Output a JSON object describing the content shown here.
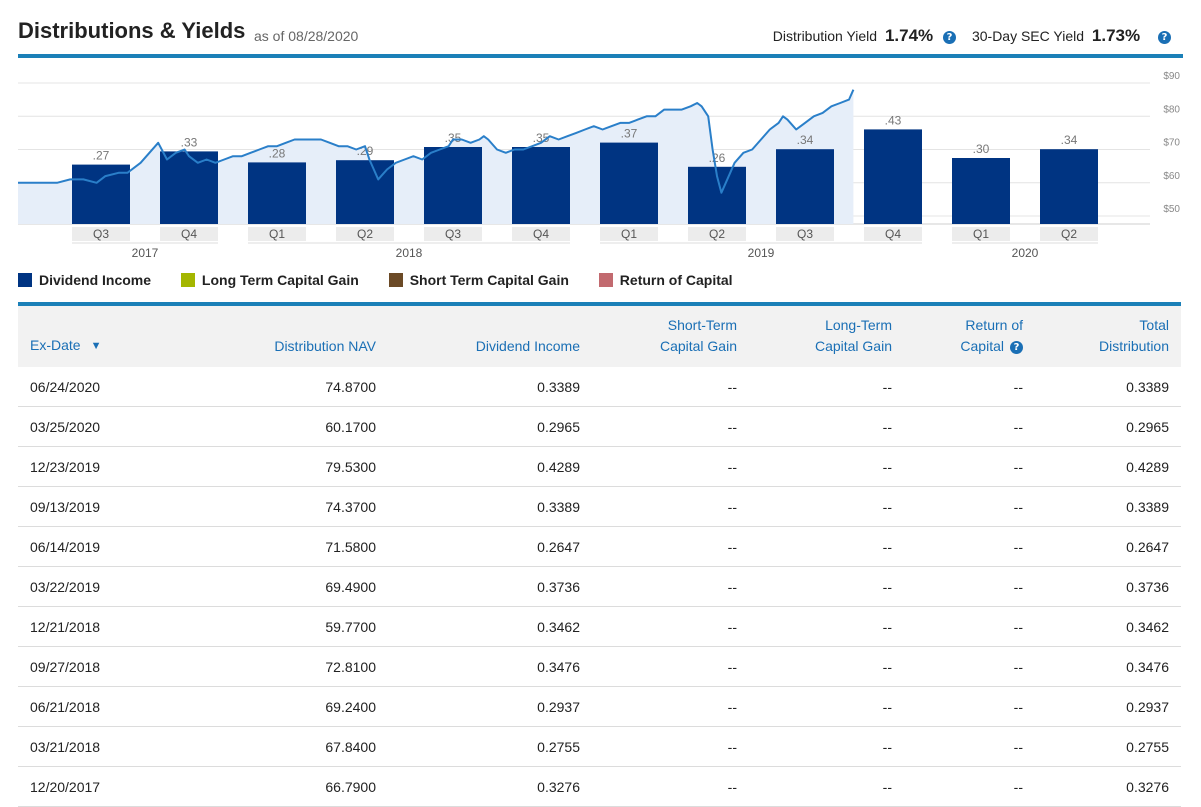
{
  "header": {
    "title": "Distributions & Yields",
    "as_of": "as of 08/28/2020",
    "distribution_yield_label": "Distribution Yield",
    "distribution_yield_value": "1.74%",
    "sec_yield_label": "30-Day SEC Yield",
    "sec_yield_value": "1.73%",
    "help_glyph": "?"
  },
  "colors": {
    "accent": "#1b80b8",
    "dividend_income": "#003482",
    "long_term_capital_gain": "#a4b600",
    "short_term_capital_gain": "#6b4a26",
    "return_of_capital": "#c26a6f",
    "nav_line": "#2a7fc9",
    "nav_area": "#e6eef9"
  },
  "chart_data": {
    "type": "bar",
    "quarters": [
      "Q3",
      "Q4",
      "Q1",
      "Q2",
      "Q3",
      "Q4",
      "Q1",
      "Q2",
      "Q3",
      "Q4",
      "Q1",
      "Q2"
    ],
    "years": [
      {
        "label": "2017",
        "first": 0,
        "last": 1
      },
      {
        "label": "2018",
        "first": 2,
        "last": 5
      },
      {
        "label": "2019",
        "first": 6,
        "last": 9
      },
      {
        "label": "2020",
        "first": 10,
        "last": 11
      }
    ],
    "bar_values": [
      0.27,
      0.33,
      0.28,
      0.29,
      0.35,
      0.35,
      0.37,
      0.26,
      0.34,
      0.43,
      0.3,
      0.34
    ],
    "bar_labels": [
      ".27",
      ".33",
      ".28",
      ".29",
      ".35",
      ".35",
      ".37",
      ".26",
      ".34",
      ".43",
      ".30",
      ".34"
    ],
    "y_right_ticks": [
      "$90",
      "$80",
      "$70",
      "$60",
      "$50"
    ],
    "y_right_range": [
      50,
      90
    ],
    "nav_line": [
      [
        0.0,
        60
      ],
      [
        0.3,
        61
      ],
      [
        0.6,
        61
      ],
      [
        0.9,
        60
      ],
      [
        1.1,
        62
      ],
      [
        1.4,
        63
      ],
      [
        1.6,
        63
      ],
      [
        1.9,
        66
      ],
      [
        2.1,
        69
      ],
      [
        2.3,
        72
      ],
      [
        2.5,
        67
      ],
      [
        2.7,
        69
      ],
      [
        2.9,
        70
      ],
      [
        3.0,
        68
      ],
      [
        3.2,
        66
      ],
      [
        3.4,
        67
      ],
      [
        3.6,
        66
      ],
      [
        3.8,
        67
      ],
      [
        4.0,
        68
      ],
      [
        4.2,
        68
      ],
      [
        4.4,
        69
      ],
      [
        4.6,
        70
      ],
      [
        4.8,
        71
      ],
      [
        5.0,
        71
      ],
      [
        5.2,
        72
      ],
      [
        5.4,
        73
      ],
      [
        5.6,
        73
      ],
      [
        5.8,
        73
      ],
      [
        6.0,
        73
      ],
      [
        6.2,
        72
      ],
      [
        6.4,
        71
      ],
      [
        6.6,
        71
      ],
      [
        6.8,
        70
      ],
      [
        7.0,
        71
      ],
      [
        7.1,
        67
      ],
      [
        7.3,
        61
      ],
      [
        7.5,
        64
      ],
      [
        7.7,
        66
      ],
      [
        7.9,
        67
      ],
      [
        8.1,
        68
      ],
      [
        8.3,
        67
      ],
      [
        8.5,
        69
      ],
      [
        8.7,
        70
      ],
      [
        8.9,
        71
      ],
      [
        9.0,
        73
      ],
      [
        9.2,
        73
      ],
      [
        9.4,
        72
      ],
      [
        9.6,
        73
      ],
      [
        9.7,
        74
      ],
      [
        9.8,
        73
      ],
      [
        10.0,
        70
      ],
      [
        10.2,
        69
      ],
      [
        10.4,
        70
      ],
      [
        10.6,
        70
      ],
      [
        10.8,
        71
      ],
      [
        11.0,
        72
      ],
      [
        11.2,
        74
      ],
      [
        11.4,
        73
      ],
      [
        11.6,
        74
      ],
      [
        11.8,
        75
      ],
      [
        12.0,
        76
      ],
      [
        12.2,
        77
      ],
      [
        12.4,
        76
      ],
      [
        12.6,
        77
      ],
      [
        12.8,
        78
      ],
      [
        13.0,
        78
      ],
      [
        13.2,
        79
      ],
      [
        13.4,
        80
      ],
      [
        13.6,
        80
      ],
      [
        13.8,
        82
      ],
      [
        14.0,
        82
      ],
      [
        14.2,
        82
      ],
      [
        14.4,
        83
      ],
      [
        14.55,
        84
      ],
      [
        14.65,
        83
      ],
      [
        14.8,
        80
      ],
      [
        14.9,
        70
      ],
      [
        15.0,
        62
      ],
      [
        15.1,
        57
      ],
      [
        15.2,
        60
      ],
      [
        15.4,
        66
      ],
      [
        15.6,
        69
      ],
      [
        15.8,
        70
      ],
      [
        16.0,
        73
      ],
      [
        16.2,
        76
      ],
      [
        16.4,
        78
      ],
      [
        16.5,
        80
      ],
      [
        16.6,
        79
      ],
      [
        16.8,
        76
      ],
      [
        17.0,
        78
      ],
      [
        17.2,
        80
      ],
      [
        17.4,
        81
      ],
      [
        17.6,
        83
      ],
      [
        17.8,
        84
      ],
      [
        18.0,
        85
      ],
      [
        18.1,
        88
      ]
    ]
  },
  "legend": [
    {
      "label": "Dividend Income",
      "color": "#003482"
    },
    {
      "label": "Long Term Capital Gain",
      "color": "#a4b600"
    },
    {
      "label": "Short Term Capital Gain",
      "color": "#6b4a26"
    },
    {
      "label": "Return of Capital",
      "color": "#c26a6f"
    }
  ],
  "table": {
    "headers": [
      {
        "line1": "",
        "line2": "Ex-Date"
      },
      {
        "line1": "",
        "line2": "Distribution NAV"
      },
      {
        "line1": "",
        "line2": "Dividend Income"
      },
      {
        "line1": "Short-Term",
        "line2": "Capital Gain"
      },
      {
        "line1": "Long-Term",
        "line2": "Capital Gain"
      },
      {
        "line1": "Return of",
        "line2": "Capital"
      },
      {
        "line1": "Total",
        "line2": "Distribution"
      }
    ],
    "sort_glyph": "▼",
    "rows": [
      [
        "06/24/2020",
        "74.8700",
        "0.3389",
        "--",
        "--",
        "--",
        "0.3389"
      ],
      [
        "03/25/2020",
        "60.1700",
        "0.2965",
        "--",
        "--",
        "--",
        "0.2965"
      ],
      [
        "12/23/2019",
        "79.5300",
        "0.4289",
        "--",
        "--",
        "--",
        "0.4289"
      ],
      [
        "09/13/2019",
        "74.3700",
        "0.3389",
        "--",
        "--",
        "--",
        "0.3389"
      ],
      [
        "06/14/2019",
        "71.5800",
        "0.2647",
        "--",
        "--",
        "--",
        "0.2647"
      ],
      [
        "03/22/2019",
        "69.4900",
        "0.3736",
        "--",
        "--",
        "--",
        "0.3736"
      ],
      [
        "12/21/2018",
        "59.7700",
        "0.3462",
        "--",
        "--",
        "--",
        "0.3462"
      ],
      [
        "09/27/2018",
        "72.8100",
        "0.3476",
        "--",
        "--",
        "--",
        "0.3476"
      ],
      [
        "06/21/2018",
        "69.2400",
        "0.2937",
        "--",
        "--",
        "--",
        "0.2937"
      ],
      [
        "03/21/2018",
        "67.8400",
        "0.2755",
        "--",
        "--",
        "--",
        "0.2755"
      ],
      [
        "12/20/2017",
        "66.7900",
        "0.3276",
        "--",
        "--",
        "--",
        "0.3276"
      ]
    ]
  }
}
